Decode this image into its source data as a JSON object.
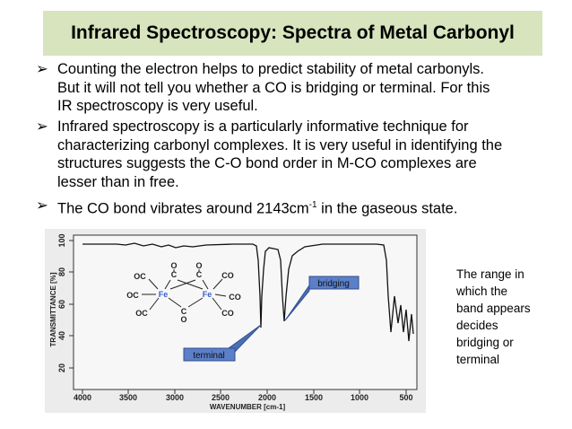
{
  "header": {
    "title": "Infrared Spectroscopy: Spectra of Metal Carbonyl"
  },
  "bullets": [
    {
      "lines": [
        "Counting the electron helps to predict stability of metal carbonyls.",
        "But it will not tell you whether a CO is bridging or terminal. For this",
        "IR spectroscopy is very useful."
      ]
    },
    {
      "lines": [
        "Infrared spectroscopy is a particularly informative technique for",
        "characterizing carbonyl complexes. It is very useful in identifying the",
        "structures suggests the C-O bond order in M-CO complexes are",
        "lesser than in free."
      ]
    },
    {
      "before": "The CO bond vibrates around 2143cm",
      "sup": "-1",
      "after": " in the gaseous state."
    }
  ],
  "figure": {
    "y_axis_label": "TRANSMITTANCE [%]",
    "x_axis_label": "WAVENUMBER [cm-1]",
    "y_ticks": [
      "100",
      "80",
      "60",
      "40",
      "20"
    ],
    "x_ticks": [
      "4000",
      "3500",
      "3000",
      "2500",
      "2000",
      "1500",
      "1000",
      "500"
    ],
    "structure": [
      "O",
      "C",
      "O",
      "C",
      "OC",
      "CO",
      "OC",
      "Fe",
      "Fe",
      "CO",
      "OC",
      "C",
      "O",
      "CO"
    ],
    "callouts": {
      "bridging": "bridging",
      "terminal": "terminal"
    }
  },
  "side_note": {
    "lines": [
      "The range in",
      "which the",
      "band appears",
      "decides",
      "bridging or",
      "terminal"
    ]
  }
}
